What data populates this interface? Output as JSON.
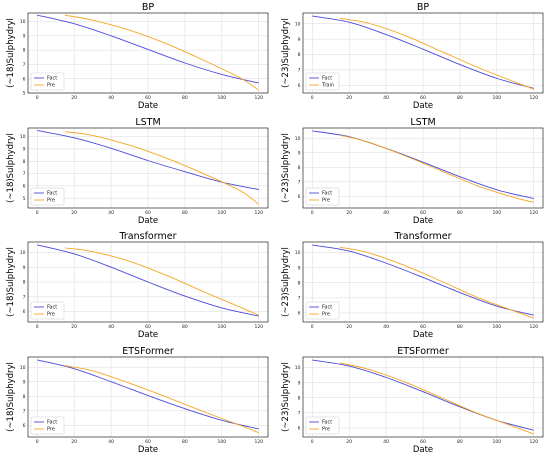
{
  "chart_data": [
    {
      "type": "line",
      "title": "BP",
      "xlabel": "Date",
      "ylabel": "(~18)Sulphydryl",
      "xlim": [
        -5,
        125
      ],
      "ylim": [
        5,
        10.6
      ],
      "xticks": [
        0,
        20,
        40,
        60,
        80,
        100,
        120
      ],
      "yticks": [
        5,
        6,
        7,
        8,
        9,
        10
      ],
      "grid": true,
      "legend": "bottom-left",
      "series": [
        {
          "name": "Fact",
          "color": "#4b4bd9",
          "x": [
            0,
            20,
            40,
            60,
            80,
            100,
            120
          ],
          "y": [
            10.45,
            9.85,
            9.0,
            8.05,
            7.1,
            6.3,
            5.7
          ]
        },
        {
          "name": "Pre",
          "color": "#f5a623",
          "x": [
            15,
            30,
            50,
            70,
            90,
            110,
            120
          ],
          "y": [
            10.45,
            10.1,
            9.4,
            8.45,
            7.3,
            6.05,
            5.2
          ]
        }
      ]
    },
    {
      "type": "line",
      "title": "BP",
      "xlabel": "Date",
      "ylabel": "(~23)Sulphydryl",
      "xlim": [
        -5,
        125
      ],
      "ylim": [
        5.5,
        10.7
      ],
      "xticks": [
        0,
        20,
        40,
        60,
        80,
        100,
        120
      ],
      "yticks": [
        6,
        7,
        8,
        9,
        10
      ],
      "grid": true,
      "legend": "bottom-left",
      "series": [
        {
          "name": "Fact",
          "color": "#4b4bd9",
          "x": [
            0,
            20,
            40,
            60,
            80,
            100,
            120
          ],
          "y": [
            10.5,
            10.1,
            9.3,
            8.35,
            7.35,
            6.45,
            5.8
          ]
        },
        {
          "name": "Train",
          "color": "#f5a623",
          "x": [
            15,
            30,
            50,
            70,
            90,
            110,
            120
          ],
          "y": [
            10.35,
            10.05,
            9.25,
            8.2,
            7.15,
            6.2,
            5.75
          ]
        }
      ]
    },
    {
      "type": "line",
      "title": "LSTM",
      "xlabel": "Date",
      "ylabel": "(~18)Sulphydryl",
      "xlim": [
        -5,
        125
      ],
      "ylim": [
        4.2,
        10.7
      ],
      "xticks": [
        0,
        20,
        40,
        60,
        80,
        100,
        120
      ],
      "yticks": [
        5,
        6,
        7,
        8,
        9,
        10
      ],
      "grid": true,
      "legend": "bottom-left",
      "series": [
        {
          "name": "Fact",
          "color": "#4b4bd9",
          "x": [
            0,
            20,
            40,
            60,
            80,
            100,
            120
          ],
          "y": [
            10.5,
            9.9,
            9.05,
            8.05,
            7.15,
            6.3,
            5.7
          ]
        },
        {
          "name": "Pre",
          "color": "#f5a623",
          "x": [
            15,
            30,
            50,
            70,
            90,
            110,
            120
          ],
          "y": [
            10.4,
            10.1,
            9.3,
            8.25,
            7.0,
            5.6,
            4.5
          ]
        }
      ]
    },
    {
      "type": "line",
      "title": "LSTM",
      "xlabel": "Date",
      "ylabel": "(~23)Sulphydryl",
      "xlim": [
        -5,
        125
      ],
      "ylim": [
        5.2,
        10.7
      ],
      "xticks": [
        0,
        20,
        40,
        60,
        80,
        100,
        120
      ],
      "yticks": [
        6,
        7,
        8,
        9,
        10
      ],
      "grid": true,
      "legend": "bottom-left",
      "series": [
        {
          "name": "Fact",
          "color": "#4b4bd9",
          "x": [
            0,
            20,
            40,
            60,
            80,
            100,
            120
          ],
          "y": [
            10.5,
            10.1,
            9.3,
            8.35,
            7.35,
            6.45,
            5.85
          ]
        },
        {
          "name": "Pre",
          "color": "#f5a623",
          "x": [
            15,
            30,
            50,
            70,
            90,
            110,
            120
          ],
          "y": [
            10.2,
            9.75,
            8.8,
            7.75,
            6.7,
            5.9,
            5.6
          ]
        }
      ]
    },
    {
      "type": "line",
      "title": "Transformer",
      "xlabel": "Date",
      "ylabel": "(~18)Sulphydryl",
      "xlim": [
        -5,
        125
      ],
      "ylim": [
        5.3,
        10.7
      ],
      "xticks": [
        0,
        20,
        40,
        60,
        80,
        100,
        120
      ],
      "yticks": [
        6,
        7,
        8,
        9,
        10
      ],
      "grid": true,
      "legend": "bottom-left",
      "series": [
        {
          "name": "Fact",
          "color": "#4b4bd9",
          "x": [
            0,
            20,
            40,
            60,
            80,
            100,
            120
          ],
          "y": [
            10.5,
            9.9,
            9.0,
            8.0,
            7.05,
            6.25,
            5.7
          ]
        },
        {
          "name": "Pre",
          "color": "#f5a623",
          "x": [
            15,
            30,
            50,
            70,
            90,
            110,
            120
          ],
          "y": [
            10.3,
            10.05,
            9.4,
            8.45,
            7.35,
            6.3,
            5.75
          ]
        }
      ]
    },
    {
      "type": "line",
      "title": "Transformer",
      "xlabel": "Date",
      "ylabel": "(~23)Sulphydryl",
      "xlim": [
        -5,
        125
      ],
      "ylim": [
        5.4,
        10.7
      ],
      "xticks": [
        0,
        20,
        40,
        60,
        80,
        100,
        120
      ],
      "yticks": [
        6,
        7,
        8,
        9,
        10
      ],
      "grid": true,
      "legend": "bottom-left",
      "series": [
        {
          "name": "Fact",
          "color": "#4b4bd9",
          "x": [
            0,
            20,
            40,
            60,
            80,
            100,
            120
          ],
          "y": [
            10.5,
            10.1,
            9.3,
            8.35,
            7.35,
            6.45,
            5.85
          ]
        },
        {
          "name": "Pre",
          "color": "#f5a623",
          "x": [
            15,
            30,
            50,
            70,
            90,
            110,
            120
          ],
          "y": [
            10.35,
            10.0,
            9.15,
            8.1,
            7.0,
            6.1,
            5.65
          ]
        }
      ]
    },
    {
      "type": "line",
      "title": "ETSFormer",
      "xlabel": "Date",
      "ylabel": "(~18)Sulphydryl",
      "xlim": [
        -5,
        125
      ],
      "ylim": [
        5.2,
        10.7
      ],
      "xticks": [
        0,
        20,
        40,
        60,
        80,
        100,
        120
      ],
      "yticks": [
        6,
        7,
        8,
        9,
        10
      ],
      "grid": true,
      "legend": "bottom-left",
      "series": [
        {
          "name": "Fact",
          "color": "#4b4bd9",
          "x": [
            0,
            20,
            40,
            60,
            80,
            100,
            120
          ],
          "y": [
            10.5,
            9.9,
            9.0,
            8.05,
            7.15,
            6.35,
            5.75
          ]
        },
        {
          "name": "Pre",
          "color": "#f5a623",
          "x": [
            15,
            30,
            50,
            70,
            90,
            110,
            120
          ],
          "y": [
            10.1,
            9.75,
            8.9,
            7.95,
            6.95,
            6.0,
            5.5
          ]
        }
      ]
    },
    {
      "type": "line",
      "title": "ETSFormer",
      "xlabel": "Date",
      "ylabel": "(~23)Sulphydryl",
      "xlim": [
        -5,
        125
      ],
      "ylim": [
        5.4,
        10.7
      ],
      "xticks": [
        0,
        20,
        40,
        60,
        80,
        100,
        120
      ],
      "yticks": [
        6,
        7,
        8,
        9,
        10
      ],
      "grid": true,
      "legend": "bottom-left",
      "series": [
        {
          "name": "Fact",
          "color": "#4b4bd9",
          "x": [
            0,
            20,
            40,
            60,
            80,
            100,
            120
          ],
          "y": [
            10.5,
            10.1,
            9.35,
            8.4,
            7.4,
            6.5,
            5.85
          ]
        },
        {
          "name": "Pre",
          "color": "#f5a623",
          "x": [
            15,
            30,
            50,
            70,
            90,
            110,
            120
          ],
          "y": [
            10.3,
            9.9,
            9.05,
            8.0,
            6.95,
            6.05,
            5.6
          ]
        }
      ]
    }
  ]
}
